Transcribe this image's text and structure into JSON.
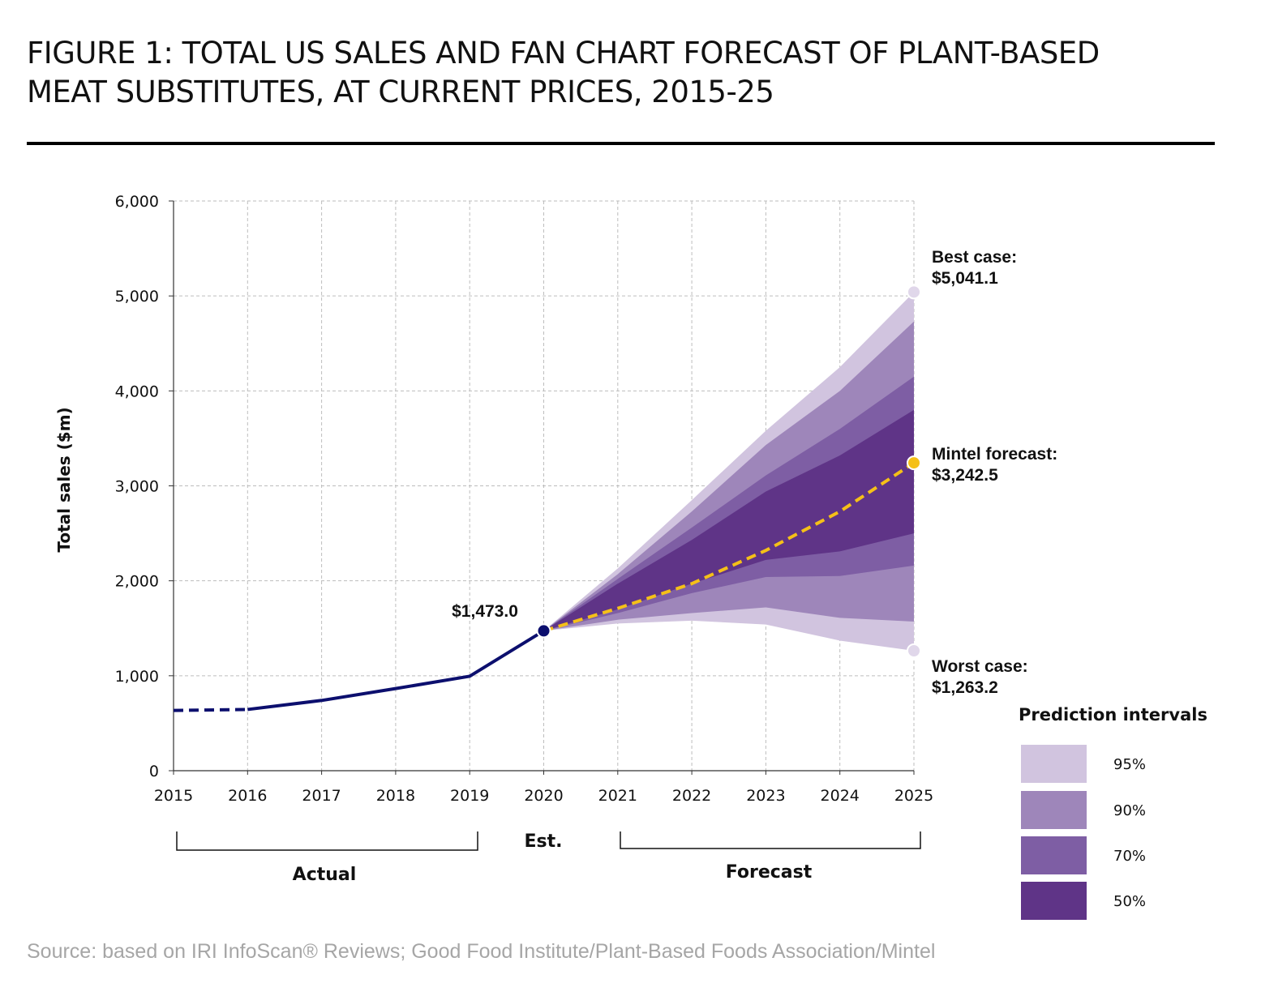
{
  "title": {
    "line1": "FIGURE 1: TOTAL US SALES AND FAN CHART FORECAST OF PLANT-BASED",
    "line2": "MEAT SUBSTITUTES, AT CURRENT PRICES, 2015-25"
  },
  "source": "Source: based on IRI InfoScan® Reviews; Good Food Institute/Plant-Based Foods Association/Mintel",
  "colors": {
    "actual_line": "#0c0f6e",
    "forecast_line": "#f5c018",
    "band_95": "#d1c4df",
    "band_90": "#9e86ba",
    "band_70": "#7e5ea4",
    "band_50": "#5f3487",
    "grid": "#bdbdbd"
  },
  "chart_data": {
    "type": "line",
    "ylabel": "Total sales ($m)",
    "xlabel": "",
    "ylim": [
      0,
      6000
    ],
    "xlim": [
      2015,
      2025
    ],
    "yticks": [
      "0",
      "1,000",
      "2,000",
      "3,000",
      "4,000",
      "5,000",
      "6,000"
    ],
    "xticks": [
      "2015",
      "2016",
      "2017",
      "2018",
      "2019",
      "2020",
      "2021",
      "2022",
      "2023",
      "2024",
      "2025"
    ],
    "grid": true,
    "actual": {
      "dashed_segment": {
        "x": [
          2015,
          2016
        ],
        "y": [
          635,
          645
        ]
      },
      "solid_segment": {
        "x": [
          2016,
          2017,
          2018,
          2019,
          2020
        ],
        "y": [
          645,
          740,
          865,
          995,
          1473
        ]
      }
    },
    "estimate": {
      "x": 2020,
      "y": 1473.0,
      "label": "$1,473.0"
    },
    "forecast": {
      "x": [
        2020,
        2021,
        2022,
        2023,
        2024,
        2025
      ],
      "y": [
        1473,
        1710,
        1970,
        2320,
        2730,
        3242.5
      ],
      "label_line1": "Mintel forecast:",
      "label_line2": "$3,242.5"
    },
    "best_case": {
      "x": 2025,
      "y": 5041.1,
      "label_line1": "Best case:",
      "label_line2": "$5,041.1"
    },
    "worst_case": {
      "x": 2025,
      "y": 1263.2,
      "label_line1": "Worst case:",
      "label_line2": "$1,263.2"
    },
    "bands": [
      {
        "name": "95%",
        "x": [
          2020,
          2021,
          2022,
          2023,
          2024,
          2025
        ],
        "upper": [
          1473,
          2130,
          2850,
          3580,
          4250,
          5041
        ],
        "lower": [
          1473,
          1550,
          1580,
          1540,
          1370,
          1263
        ]
      },
      {
        "name": "90%",
        "x": [
          2020,
          2021,
          2022,
          2023,
          2024,
          2025
        ],
        "upper": [
          1473,
          2070,
          2730,
          3430,
          4000,
          4730
        ],
        "lower": [
          1473,
          1590,
          1660,
          1720,
          1610,
          1570
        ]
      },
      {
        "name": "70%",
        "x": [
          2020,
          2021,
          2022,
          2023,
          2024,
          2025
        ],
        "upper": [
          1473,
          2020,
          2560,
          3110,
          3600,
          4150
        ],
        "lower": [
          1473,
          1660,
          1870,
          2040,
          2050,
          2160
        ]
      },
      {
        "name": "50%",
        "x": [
          2020,
          2021,
          2022,
          2023,
          2024,
          2025
        ],
        "upper": [
          1473,
          1970,
          2430,
          2940,
          3320,
          3800
        ],
        "lower": [
          1473,
          1700,
          1970,
          2220,
          2310,
          2500
        ]
      }
    ],
    "periods": {
      "actual": "Actual",
      "estimate": "Est.",
      "forecast": "Forecast"
    },
    "legend": {
      "title": "Prediction intervals",
      "placement": "bottom-right",
      "items": [
        "95%",
        "90%",
        "70%",
        "50%"
      ]
    }
  }
}
